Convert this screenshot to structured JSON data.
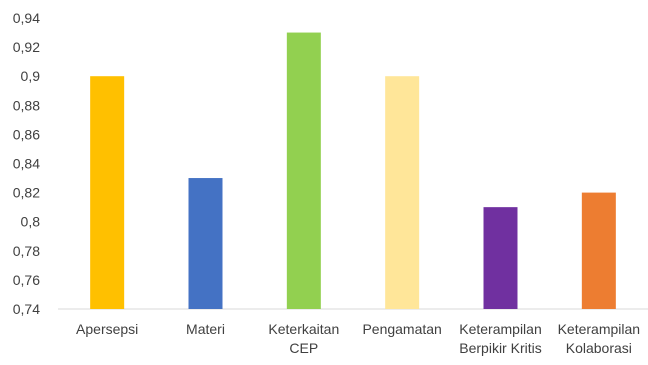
{
  "chart_data": {
    "type": "bar",
    "categories": [
      [
        "Apersepsi"
      ],
      [
        "Materi"
      ],
      [
        "Keterkaitan",
        "CEP"
      ],
      [
        "Pengamatan"
      ],
      [
        "Keterampilan",
        "Berpikir Kritis"
      ],
      [
        "Keterampilan",
        "Kolaborasi"
      ]
    ],
    "values": [
      0.9,
      0.83,
      0.93,
      0.9,
      0.81,
      0.82
    ],
    "colors": [
      "#FFC000",
      "#4472C4",
      "#92D050",
      "#FFE699",
      "#7030A0",
      "#ED7D31"
    ],
    "title": "",
    "xlabel": "",
    "ylabel": "",
    "ylim": [
      0.74,
      0.94
    ],
    "yticks": [
      "0,74",
      "0,76",
      "0,78",
      "0,8",
      "0,82",
      "0,84",
      "0,86",
      "0,88",
      "0,9",
      "0,92",
      "0,94"
    ],
    "grid": false,
    "legend": "none"
  }
}
